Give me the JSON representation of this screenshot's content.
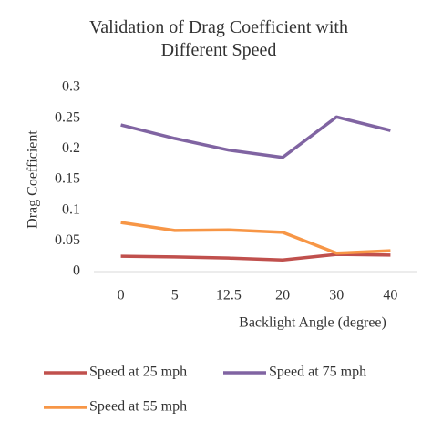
{
  "chart_data": {
    "type": "line",
    "title": "Validation of Drag Coefficient with Different Speed",
    "x_label": "Backlight Angle (degree)",
    "y_label": "Drag Coefficient",
    "categories": [
      "0",
      "5",
      "12.5",
      "20",
      "30",
      "40"
    ],
    "series": [
      {
        "name": "Speed at 25 mph",
        "color": "#c0504d",
        "values": [
          0.025,
          0.024,
          0.022,
          0.019,
          0.028,
          0.027
        ]
      },
      {
        "name": "Speed at 75 mph",
        "color": "#8064a2",
        "values": [
          0.239,
          0.217,
          0.198,
          0.186,
          0.252,
          0.23
        ]
      },
      {
        "name": "Speed at 55 mph",
        "color": "#f79646",
        "values": [
          0.08,
          0.067,
          0.068,
          0.064,
          0.03,
          0.034
        ]
      }
    ],
    "ylim": [
      0,
      0.3
    ],
    "yticks": [
      0,
      0.05,
      0.1,
      0.15,
      0.2,
      0.25,
      0.3
    ],
    "grid": false,
    "legend": "bottom"
  }
}
